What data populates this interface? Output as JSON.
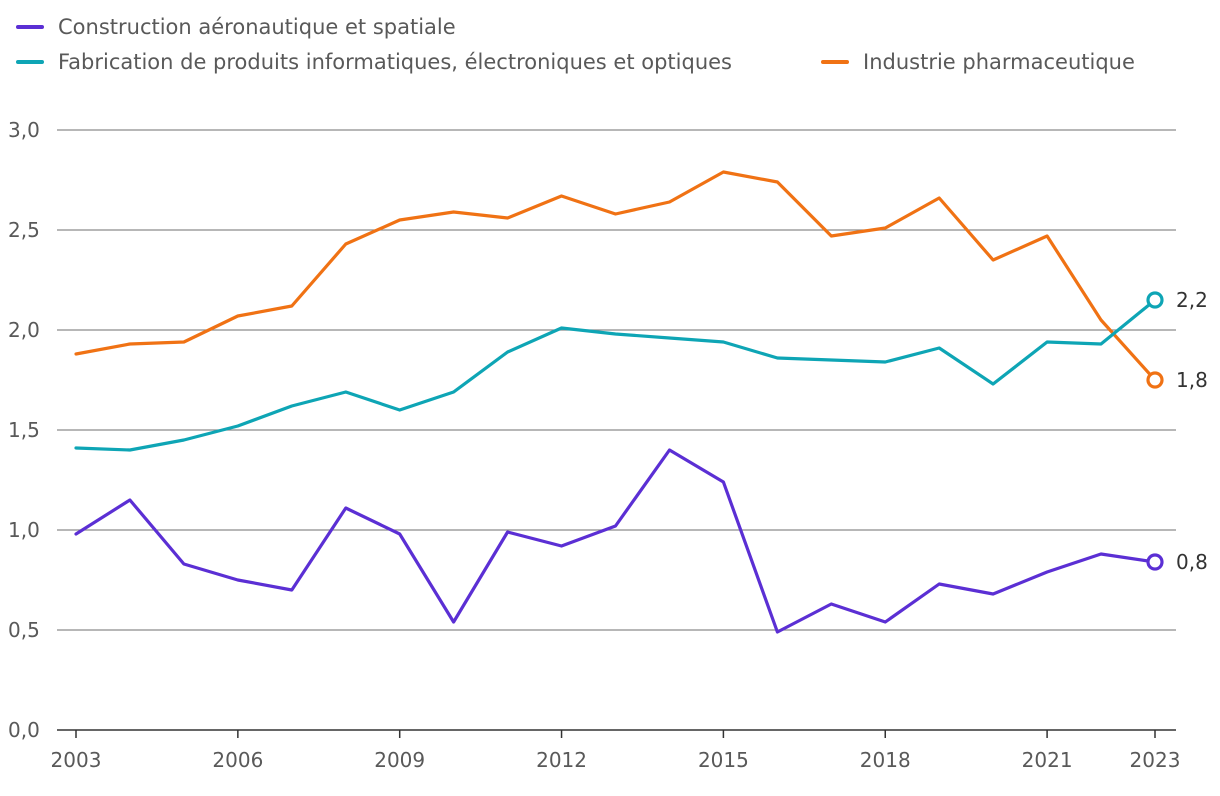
{
  "chart_data": {
    "type": "line",
    "x": [
      2003,
      2004,
      2005,
      2006,
      2007,
      2008,
      2009,
      2010,
      2011,
      2012,
      2013,
      2014,
      2015,
      2016,
      2017,
      2018,
      2019,
      2020,
      2021,
      2022,
      2023
    ],
    "x_ticks": [
      "2003",
      "2006",
      "2009",
      "2012",
      "2015",
      "2018",
      "2021",
      "2023"
    ],
    "x_tick_values": [
      2003,
      2006,
      2009,
      2012,
      2015,
      2018,
      2021,
      2023
    ],
    "y_ticks": [
      "0,0",
      "0,5",
      "1,0",
      "1,5",
      "2,0",
      "2,5",
      "3,0"
    ],
    "y_tick_values": [
      0,
      0.5,
      1.0,
      1.5,
      2.0,
      2.5,
      3.0
    ],
    "xlim": [
      2003,
      2023
    ],
    "ylim": [
      0,
      3.0
    ],
    "grid": "horizontal",
    "legend_position": "top-left",
    "series": [
      {
        "name": "Construction aéronautique et spatiale",
        "color": "#5b2fd4",
        "values": [
          0.98,
          1.15,
          0.83,
          0.75,
          0.7,
          1.11,
          0.98,
          0.54,
          0.99,
          0.92,
          1.02,
          1.4,
          1.24,
          0.49,
          0.63,
          0.54,
          0.73,
          0.68,
          0.79,
          0.88,
          0.84
        ],
        "end_label": "0,8"
      },
      {
        "name": "Fabrication de produits informatiques, électroniques et optiques",
        "color": "#0ea5b5",
        "values": [
          1.41,
          1.4,
          1.45,
          1.52,
          1.62,
          1.69,
          1.6,
          1.69,
          1.89,
          2.01,
          1.98,
          1.96,
          1.94,
          1.86,
          1.85,
          1.84,
          1.91,
          1.73,
          1.94,
          1.93,
          2.15
        ],
        "end_label": "2,2"
      },
      {
        "name": "Industrie pharmaceutique",
        "color": "#f07214",
        "values": [
          1.88,
          1.93,
          1.94,
          2.07,
          2.12,
          2.43,
          2.55,
          2.59,
          2.56,
          2.67,
          2.58,
          2.64,
          2.79,
          2.74,
          2.47,
          2.51,
          2.66,
          2.35,
          2.47,
          2.05,
          1.75
        ],
        "end_label": "1,8"
      }
    ]
  }
}
